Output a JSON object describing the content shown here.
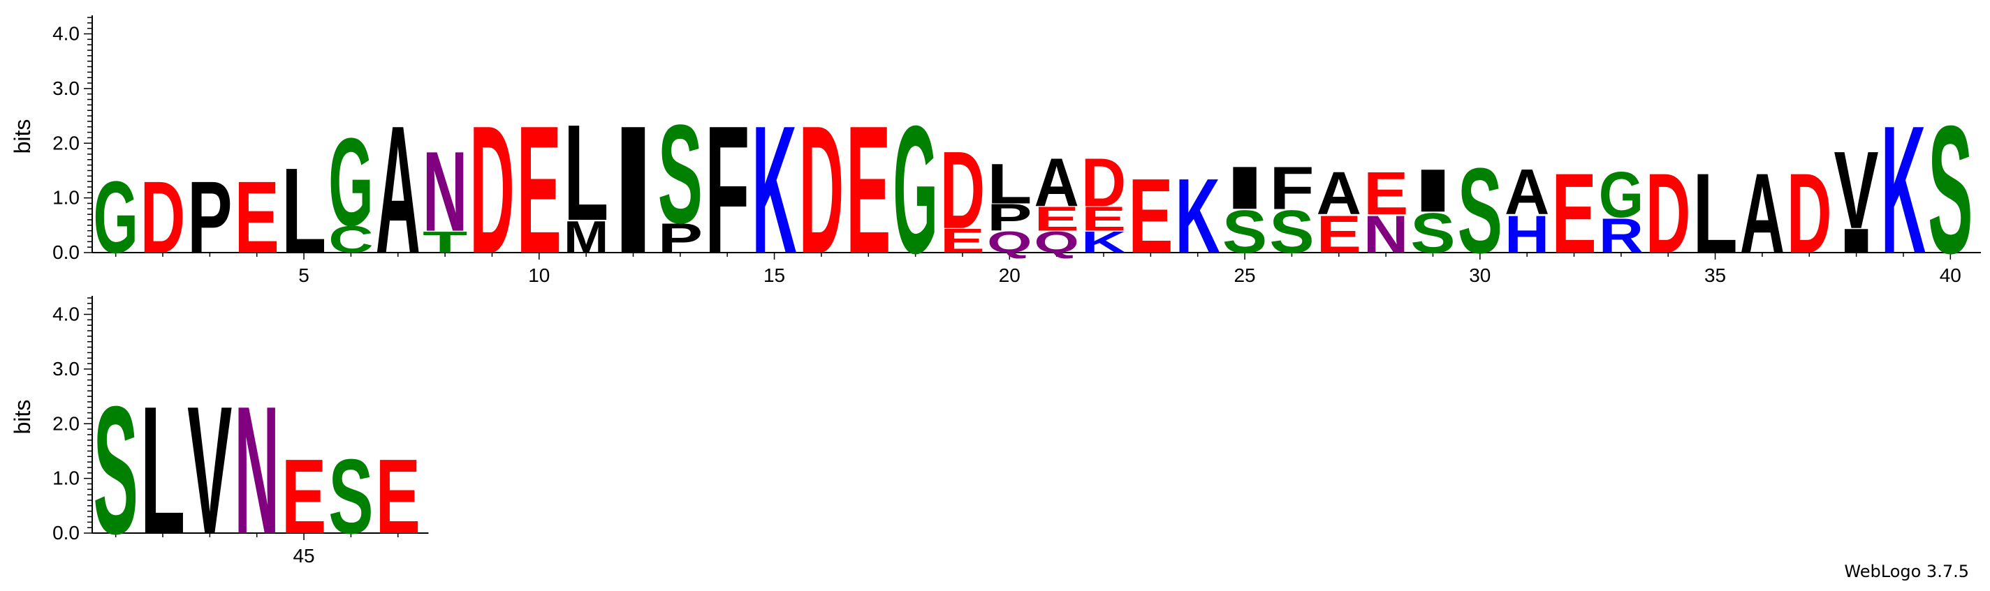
{
  "chart_data": {
    "type": "sequence-logo",
    "ylabel": "bits",
    "ylim": [
      0,
      4.3
    ],
    "yticks": [
      "0.0",
      "1.0",
      "2.0",
      "3.0",
      "4.0"
    ],
    "xtick_labels": [
      {
        "position": 5,
        "label": "5"
      },
      {
        "position": 10,
        "label": "10"
      },
      {
        "position": 15,
        "label": "15"
      },
      {
        "position": 20,
        "label": "20"
      },
      {
        "position": 25,
        "label": "25"
      },
      {
        "position": 30,
        "label": "30"
      },
      {
        "position": 35,
        "label": "35"
      },
      {
        "position": 40,
        "label": "40"
      },
      {
        "position": 45,
        "label": "45"
      }
    ],
    "rows": [
      {
        "start": 1,
        "end": 40
      },
      {
        "start": 41,
        "end": 47
      }
    ],
    "colors": {
      "G": "#008000",
      "S": "#008000",
      "T": "#008000",
      "C": "#008000",
      "D": "#ff0000",
      "E": "#ff0000",
      "K": "#0000ff",
      "R": "#0000ff",
      "H": "#0000ff",
      "N": "#800080",
      "Q": "#800080",
      "A": "#000000",
      "L": "#000000",
      "I": "#000000",
      "M": "#000000",
      "P": "#000000",
      "F": "#000000",
      "V": "#000000",
      "W": "#000000",
      "Y": "#000000"
    },
    "positions": [
      {
        "pos": 1,
        "stack": [
          [
            "G",
            1.35
          ]
        ]
      },
      {
        "pos": 2,
        "stack": [
          [
            "D",
            1.35
          ]
        ]
      },
      {
        "pos": 3,
        "stack": [
          [
            "P",
            1.35
          ]
        ]
      },
      {
        "pos": 4,
        "stack": [
          [
            "E",
            1.35
          ]
        ]
      },
      {
        "pos": 5,
        "stack": [
          [
            "L",
            1.6
          ]
        ]
      },
      {
        "pos": 6,
        "stack": [
          [
            "C",
            0.5
          ],
          [
            "G",
            1.65
          ]
        ]
      },
      {
        "pos": 7,
        "stack": [
          [
            "A",
            2.4
          ]
        ]
      },
      {
        "pos": 8,
        "stack": [
          [
            "T",
            0.4
          ],
          [
            "N",
            1.5
          ]
        ]
      },
      {
        "pos": 9,
        "stack": [
          [
            "D",
            2.4
          ]
        ]
      },
      {
        "pos": 10,
        "stack": [
          [
            "E",
            2.4
          ]
        ]
      },
      {
        "pos": 11,
        "stack": [
          [
            "M",
            0.6
          ],
          [
            "L",
            1.8
          ]
        ]
      },
      {
        "pos": 12,
        "stack": [
          [
            "I",
            2.4
          ]
        ]
      },
      {
        "pos": 13,
        "stack": [
          [
            "P",
            0.55
          ],
          [
            "S",
            1.85
          ]
        ]
      },
      {
        "pos": 14,
        "stack": [
          [
            "F",
            2.4
          ]
        ]
      },
      {
        "pos": 15,
        "stack": [
          [
            "K",
            2.4
          ]
        ]
      },
      {
        "pos": 16,
        "stack": [
          [
            "D",
            2.4
          ]
        ]
      },
      {
        "pos": 17,
        "stack": [
          [
            "E",
            2.4
          ]
        ]
      },
      {
        "pos": 18,
        "stack": [
          [
            "G",
            2.4
          ]
        ]
      },
      {
        "pos": 19,
        "stack": [
          [
            "E",
            0.45
          ],
          [
            "D",
            1.45
          ]
        ]
      },
      {
        "pos": 20,
        "stack": [
          [
            "Q",
            0.4
          ],
          [
            "P",
            0.5
          ],
          [
            "L",
            0.75
          ]
        ]
      },
      {
        "pos": 21,
        "stack": [
          [
            "Q",
            0.4
          ],
          [
            "E",
            0.45
          ],
          [
            "A",
            0.9
          ]
        ]
      },
      {
        "pos": 22,
        "stack": [
          [
            "K",
            0.4
          ],
          [
            "E",
            0.45
          ],
          [
            "D",
            0.9
          ]
        ]
      },
      {
        "pos": 23,
        "stack": [
          [
            "E",
            1.4
          ]
        ]
      },
      {
        "pos": 24,
        "stack": [
          [
            "K",
            1.4
          ]
        ]
      },
      {
        "pos": 25,
        "stack": [
          [
            "S",
            0.8
          ],
          [
            "I",
            0.8
          ]
        ]
      },
      {
        "pos": 26,
        "stack": [
          [
            "S",
            0.8
          ],
          [
            "F",
            0.8
          ]
        ]
      },
      {
        "pos": 27,
        "stack": [
          [
            "E",
            0.7
          ],
          [
            "A",
            0.8
          ]
        ]
      },
      {
        "pos": 28,
        "stack": [
          [
            "N",
            0.7
          ],
          [
            "E",
            0.8
          ]
        ]
      },
      {
        "pos": 29,
        "stack": [
          [
            "S",
            0.75
          ],
          [
            "I",
            0.8
          ]
        ]
      },
      {
        "pos": 30,
        "stack": [
          [
            "S",
            1.6
          ]
        ]
      },
      {
        "pos": 31,
        "stack": [
          [
            "H",
            0.7
          ],
          [
            "A",
            0.85
          ]
        ]
      },
      {
        "pos": 32,
        "stack": [
          [
            "E",
            1.5
          ]
        ]
      },
      {
        "pos": 33,
        "stack": [
          [
            "R",
            0.65
          ],
          [
            "G",
            0.85
          ]
        ]
      },
      {
        "pos": 34,
        "stack": [
          [
            "D",
            1.5
          ]
        ]
      },
      {
        "pos": 35,
        "stack": [
          [
            "L",
            1.5
          ]
        ]
      },
      {
        "pos": 36,
        "stack": [
          [
            "A",
            1.5
          ]
        ]
      },
      {
        "pos": 37,
        "stack": [
          [
            "D",
            1.5
          ]
        ]
      },
      {
        "pos": 38,
        "stack": [
          [
            "I",
            0.45
          ],
          [
            "V",
            1.45
          ]
        ]
      },
      {
        "pos": 39,
        "stack": [
          [
            "K",
            2.4
          ]
        ]
      },
      {
        "pos": 40,
        "stack": [
          [
            "S",
            2.4
          ]
        ]
      },
      {
        "pos": 41,
        "stack": [
          [
            "S",
            2.4
          ]
        ]
      },
      {
        "pos": 42,
        "stack": [
          [
            "L",
            2.4
          ]
        ]
      },
      {
        "pos": 43,
        "stack": [
          [
            "V",
            2.4
          ]
        ]
      },
      {
        "pos": 44,
        "stack": [
          [
            "N",
            2.4
          ]
        ]
      },
      {
        "pos": 45,
        "stack": [
          [
            "E",
            1.4
          ]
        ]
      },
      {
        "pos": 46,
        "stack": [
          [
            "S",
            1.4
          ]
        ]
      },
      {
        "pos": 47,
        "stack": [
          [
            "E",
            1.4
          ]
        ]
      }
    ]
  },
  "footer": {
    "credit": "WebLogo 3.7.5"
  }
}
